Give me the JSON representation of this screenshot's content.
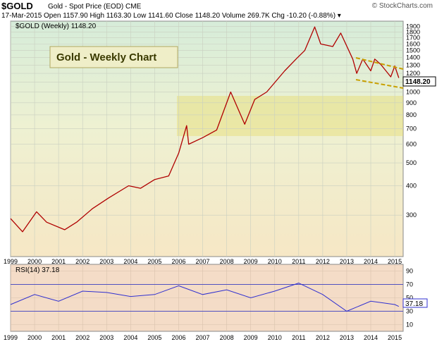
{
  "header": {
    "ticker": "$GOLD",
    "subtitle": "Gold - Spot Price (EOD)  CME",
    "copyright": "© StockCharts.com",
    "quote_line": "17-Mar-2015   Open 1157.90   High 1163.30   Low 1141.60   Close 1148.20   Volume 269.7K   Chg -10.20 (-0.88%) ▾"
  },
  "main_panel": {
    "legend": "$GOLD (Weekly) 1148.20",
    "annotation": "Gold - Weekly Chart",
    "last_price_label": "1148.20",
    "price_color": "#b00000",
    "y_ticks": [
      "300",
      "400",
      "500",
      "600",
      "700",
      "800",
      "900",
      "1000",
      "1100",
      "1200",
      "1300",
      "1400",
      "1500",
      "1600",
      "1700",
      "1800",
      "1900"
    ]
  },
  "rsi_panel": {
    "legend": "RSI(14) 37.18",
    "last_label": "37.18",
    "line_color": "#3030d0",
    "y_ticks": [
      "10",
      "30",
      "50",
      "70",
      "90"
    ]
  },
  "x_ticks": [
    "1999",
    "2000",
    "2001",
    "2002",
    "2003",
    "2004",
    "2005",
    "2006",
    "2007",
    "2008",
    "2009",
    "2010",
    "2011",
    "2012",
    "2013",
    "2014",
    "2015"
  ],
  "chart_data": [
    {
      "type": "line",
      "title": "$GOLD (Weekly)",
      "scale": "log",
      "ylim": [
        200,
        2000
      ],
      "grid": true,
      "x": [
        "1999-01",
        "1999-07",
        "2000-02",
        "2000-07",
        "2001-04",
        "2001-10",
        "2002-06",
        "2003-02",
        "2003-12",
        "2004-06",
        "2005-01",
        "2005-08",
        "2006-01",
        "2006-05",
        "2006-06",
        "2007-01",
        "2007-08",
        "2008-03",
        "2008-10",
        "2009-03",
        "2009-09",
        "2010-06",
        "2010-12",
        "2011-04",
        "2011-09",
        "2011-12",
        "2012-06",
        "2012-10",
        "2013-04",
        "2013-06",
        "2013-09",
        "2014-01",
        "2014-03",
        "2014-06",
        "2014-11",
        "2015-01",
        "2015-03"
      ],
      "series": [
        {
          "values": [
            290,
            255,
            310,
            280,
            260,
            280,
            320,
            355,
            400,
            390,
            425,
            440,
            550,
            720,
            600,
            640,
            690,
            1000,
            730,
            930,
            1000,
            1230,
            1390,
            1500,
            1890,
            1600,
            1560,
            1780,
            1380,
            1200,
            1380,
            1230,
            1380,
            1310,
            1160,
            1290,
            1148
          ]
        }
      ]
    },
    {
      "type": "line",
      "title": "RSI(14)",
      "ylim": [
        0,
        100
      ],
      "grid": true,
      "x": [
        "1999",
        "2000",
        "2001",
        "2002",
        "2003",
        "2004",
        "2005",
        "2006",
        "2007",
        "2008",
        "2009",
        "2010",
        "2011",
        "2012",
        "2013",
        "2014",
        "2015",
        "2015-03"
      ],
      "series": [
        {
          "values": [
            40,
            55,
            45,
            60,
            58,
            52,
            55,
            68,
            55,
            62,
            50,
            60,
            72,
            55,
            30,
            45,
            40,
            37.18
          ]
        }
      ]
    }
  ]
}
